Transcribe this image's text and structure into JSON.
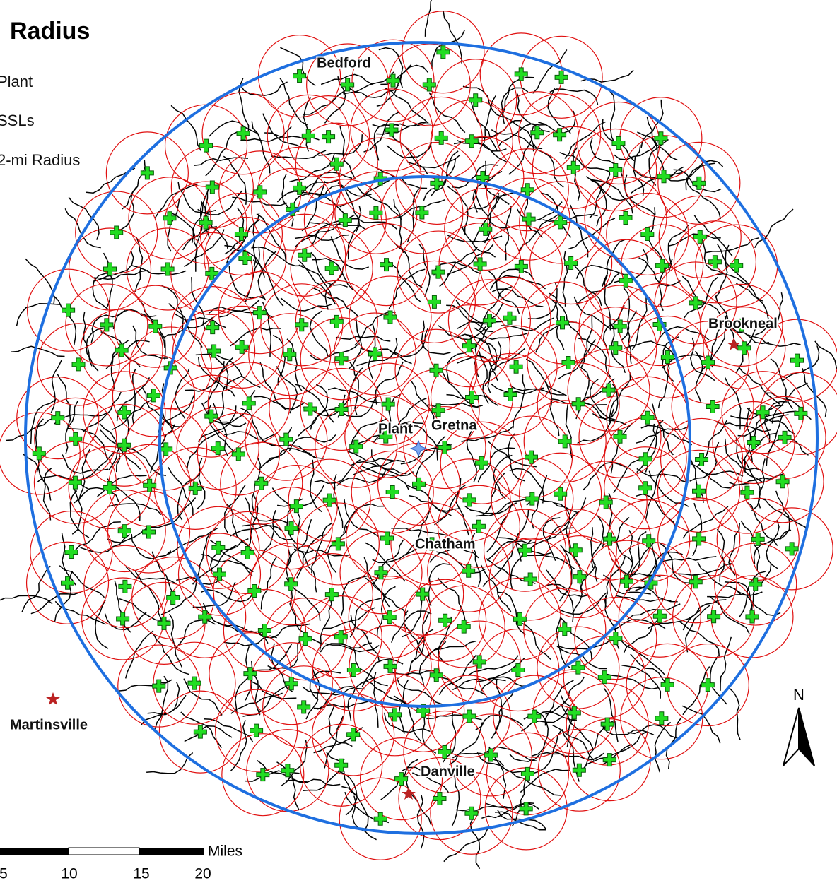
{
  "title": "Radius",
  "legend": {
    "items": [
      "Plant",
      "SSLs",
      "2-mi Radius"
    ]
  },
  "places": {
    "bedford": "Bedford",
    "brookneal": "Brookneal",
    "plant": "Plant",
    "gretna": "Gretna",
    "chatham": "Chatham",
    "danville": "Danville",
    "martinsville": "Martinsville"
  },
  "north_arrow": "N",
  "scale_bar": {
    "unit": "Miles",
    "labels": [
      "5",
      "10",
      "15",
      "20"
    ]
  }
}
